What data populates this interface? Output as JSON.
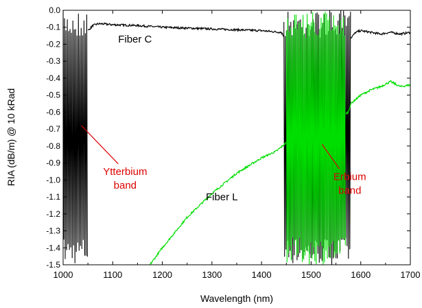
{
  "chart_data": {
    "type": "line",
    "title": "",
    "xlabel": "Wavelength (nm)",
    "ylabel": "RIA (dB/m) @ 10 kRad",
    "xlim": [
      1000,
      1700
    ],
    "ylim": [
      -1.5,
      0.0
    ],
    "x_ticks": [
      1000,
      1100,
      1200,
      1300,
      1400,
      1500,
      1600,
      1700
    ],
    "x_tick_labels": [
      "1000",
      "1100",
      "1200",
      "1300",
      "1400",
      "1500",
      "1600",
      "1700"
    ],
    "y_ticks": [
      0.0,
      -0.1,
      -0.2,
      -0.3,
      -0.4,
      -0.5,
      -0.6,
      -0.7,
      -0.8,
      -0.9,
      -1.0,
      -1.1,
      -1.2,
      -1.3,
      -1.4,
      -1.5
    ],
    "y_tick_labels": [
      "0.0",
      "-0.1",
      "-0.2",
      "-0.3",
      "-0.4",
      "-0.5",
      "-0.6",
      "-0.7",
      "-0.8",
      "-0.9",
      "-1.0",
      "-1.1",
      "-1.2",
      "-1.3",
      "-1.4",
      "-1.5"
    ],
    "grid": false,
    "legend": "none",
    "series": [
      {
        "name": "Fiber C",
        "color": "#000000",
        "x": [
          1050,
          1060,
          1070,
          1080,
          1100,
          1150,
          1200,
          1250,
          1300,
          1350,
          1400,
          1440,
          1455,
          1575,
          1590,
          1600,
          1620,
          1640,
          1660,
          1680,
          1700
        ],
        "y": [
          -0.12,
          -0.09,
          -0.08,
          -0.08,
          -0.085,
          -0.09,
          -0.1,
          -0.105,
          -0.11,
          -0.115,
          -0.12,
          -0.13,
          -0.2,
          -0.18,
          -0.13,
          -0.12,
          -0.13,
          -0.14,
          -0.13,
          -0.14,
          -0.13
        ],
        "noisy_x_ranges": [
          [
            1000,
            1050
          ],
          [
            1445,
            1580
          ]
        ],
        "noise_y_range": [
          -1.5,
          0.0
        ]
      },
      {
        "name": "Fiber L",
        "color": "#00dd00",
        "x": [
          1175,
          1200,
          1250,
          1300,
          1350,
          1400,
          1430,
          1450,
          1575,
          1580,
          1600,
          1620,
          1640,
          1660,
          1680,
          1700
        ],
        "y": [
          -1.5,
          -1.4,
          -1.22,
          -1.08,
          -0.96,
          -0.87,
          -0.83,
          -0.78,
          -0.6,
          -0.55,
          -0.5,
          -0.47,
          -0.45,
          -0.42,
          -0.45,
          -0.44
        ],
        "noisy_x_ranges": [
          [
            1450,
            1570
          ]
        ],
        "noise_y_range": [
          -1.5,
          0.0
        ]
      }
    ],
    "annotations": [
      {
        "text": "Fiber C",
        "x": 1145,
        "y": -0.19,
        "color": "#000000"
      },
      {
        "text": "Fiber L",
        "x": 1320,
        "y": -1.12,
        "color": "#000000"
      },
      {
        "text": "Ytterbium",
        "line2": "band",
        "x": 1125,
        "y": -0.97,
        "color": "#dd0000",
        "arrow_to": [
          1037,
          -0.68
        ]
      },
      {
        "text": "Erbium",
        "line2": "band",
        "x": 1578,
        "y": -1.0,
        "color": "#dd0000",
        "arrow_to": [
          1522,
          -0.79
        ]
      }
    ]
  }
}
